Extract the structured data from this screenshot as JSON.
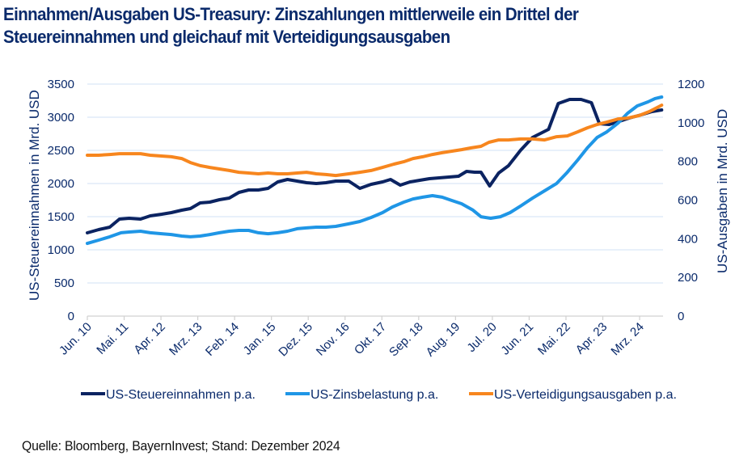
{
  "title": "Einnahmen/Ausgaben US-Treasury: Zinszahlungen mittlerweile ein Drittel der Steuereinnahmen und gleichauf mit Verteidigungsausgaben",
  "source": "Quelle: Bloomberg, BayernInvest; Stand: Dezember 2024",
  "chart_data": {
    "type": "line",
    "title": "Einnahmen/Ausgaben US-Treasury: Zinszahlungen mittlerweile ein Drittel der Steuereinnahmen und gleichauf mit Verteidigungsausgaben",
    "xlabel": "",
    "ylabel": "US-Steuereinnahmen in Mrd. USD",
    "y2label": "US-Ausgaben in Mrd. USD",
    "ylim": [
      0,
      3500
    ],
    "y2lim": [
      0,
      1200
    ],
    "yticks": [
      0,
      500,
      1000,
      1500,
      2000,
      2500,
      3000,
      3500
    ],
    "y2ticks": [
      0,
      200,
      400,
      600,
      800,
      1000,
      1200
    ],
    "x_unit": "months since Jun. 2010",
    "xlim": [
      0,
      172
    ],
    "xtick_labels": [
      "Jun. 10",
      "Mai. 11",
      "Apr. 12",
      "Mrz. 13",
      "Feb. 14",
      "Jan. 15",
      "Dez. 15",
      "Nov. 16",
      "Okt. 17",
      "Sep. 18",
      "Aug. 19",
      "Jul. 20",
      "Jun. 21",
      "Mai. 22",
      "Apr. 23",
      "Mrz. 24"
    ],
    "xtick_positions": [
      0,
      11,
      22,
      33,
      44,
      55,
      66,
      77,
      88,
      99,
      110,
      121,
      132,
      143,
      154,
      165
    ],
    "grid": true,
    "legend_position": "bottom",
    "series": [
      {
        "name": "US-Steuereinnahmen p.a.",
        "axis": "left",
        "color": "#0b2361",
        "x": [
          0,
          3.4,
          6.7,
          9.6,
          12.5,
          15.9,
          18.8,
          22.2,
          25.1,
          28.2,
          30.8,
          33.7,
          36.6,
          39.5,
          42.4,
          45.3,
          48.2,
          51.1,
          54.0,
          56.9,
          59.8,
          62.7,
          65.5,
          68.4,
          71.3,
          74.2,
          78.1,
          81.4,
          84.8,
          88.2,
          90.6,
          93.5,
          96.4,
          99.3,
          102.2,
          105.1,
          108.0,
          110.9,
          113.3,
          115.7,
          117.6,
          120.2,
          122.9,
          125.8,
          129.4,
          133.0,
          137.8,
          140.7,
          144.1,
          147.5,
          150.6,
          153.0,
          155.9,
          159.0,
          161.9,
          165.5,
          168.7,
          171.6
        ],
        "values": [
          1256,
          1305,
          1341,
          1463,
          1476,
          1463,
          1512,
          1537,
          1561,
          1598,
          1622,
          1707,
          1720,
          1756,
          1780,
          1866,
          1902,
          1902,
          1927,
          2024,
          2061,
          2037,
          2012,
          2000,
          2012,
          2037,
          2037,
          1927,
          1988,
          2024,
          2061,
          1976,
          2024,
          2049,
          2073,
          2085,
          2098,
          2110,
          2183,
          2171,
          2171,
          1963,
          2159,
          2268,
          2500,
          2695,
          2817,
          3207,
          3268,
          3268,
          3220,
          2902,
          2890,
          2939,
          2988,
          3037,
          3085,
          3110
        ]
      },
      {
        "name": "US-Zinsbelastung p.a.",
        "axis": "right",
        "color": "#1f96e6",
        "x": [
          0,
          3.4,
          6.7,
          10.1,
          12.5,
          15.9,
          18.8,
          22.2,
          25.1,
          28.2,
          30.8,
          33.7,
          36.6,
          39.5,
          42.4,
          45.3,
          48.2,
          51.1,
          54.0,
          56.9,
          59.8,
          62.7,
          65.5,
          68.4,
          71.3,
          74.2,
          78.1,
          81.4,
          84.8,
          88.2,
          91.1,
          94.5,
          97.3,
          100.2,
          103.1,
          106.0,
          108.9,
          111.8,
          115.2,
          117.6,
          120.5,
          123.4,
          126.3,
          129.4,
          133.0,
          136.6,
          140.2,
          143.4,
          146.5,
          149.4,
          152.3,
          155.2,
          158.6,
          161.4,
          164.3,
          167.5,
          169.6,
          171.6
        ],
        "values": [
          376,
          393,
          410,
          431,
          435,
          439,
          431,
          426,
          422,
          414,
          410,
          414,
          422,
          431,
          439,
          443,
          443,
          431,
          426,
          431,
          439,
          452,
          456,
          460,
          460,
          464,
          477,
          489,
          510,
          535,
          564,
          589,
          606,
          615,
          623,
          615,
          598,
          581,
          548,
          514,
          506,
          514,
          535,
          569,
          610,
          648,
          686,
          744,
          807,
          870,
          924,
          953,
          999,
          1049,
          1087,
          1108,
          1125,
          1133
        ]
      },
      {
        "name": "US-Verteidigungsausgaben p.a.",
        "axis": "right",
        "color": "#f7861e",
        "x": [
          0,
          3.4,
          6.7,
          9.6,
          12.5,
          15.9,
          18.8,
          22.2,
          25.1,
          28.2,
          30.8,
          33.7,
          36.6,
          39.5,
          42.4,
          45.3,
          48.2,
          51.1,
          54.0,
          56.9,
          59.8,
          62.7,
          65.5,
          68.4,
          71.3,
          74.2,
          78.1,
          81.4,
          84.8,
          88.2,
          91.6,
          94.5,
          97.3,
          100.2,
          103.1,
          106.0,
          108.9,
          111.8,
          114.7,
          117.6,
          120.0,
          122.9,
          125.8,
          129.4,
          133.0,
          136.6,
          140.2,
          143.4,
          146.5,
          149.4,
          152.3,
          155.2,
          158.6,
          161.4,
          164.8,
          167.9,
          171.6
        ],
        "values": [
          832,
          832,
          836,
          840,
          840,
          840,
          832,
          828,
          824,
          815,
          794,
          778,
          769,
          761,
          753,
          744,
          740,
          736,
          740,
          736,
          736,
          740,
          744,
          736,
          732,
          727,
          736,
          744,
          753,
          769,
          786,
          798,
          815,
          824,
          836,
          845,
          853,
          861,
          870,
          878,
          899,
          911,
          911,
          916,
          916,
          911,
          928,
          932,
          953,
          974,
          991,
          1003,
          1020,
          1024,
          1037,
          1058,
          1091
        ]
      }
    ]
  }
}
